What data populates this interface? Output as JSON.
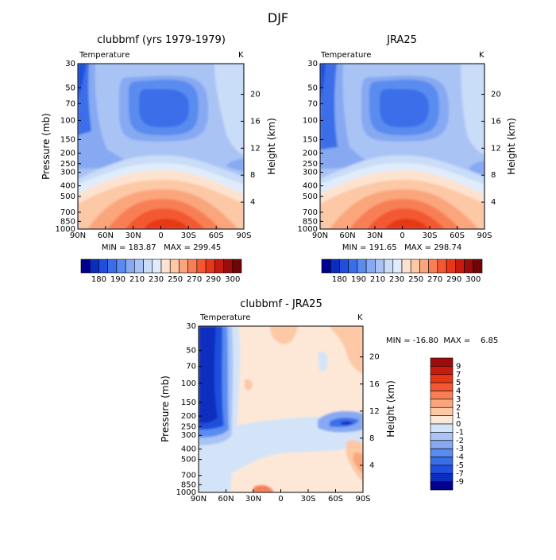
{
  "title": "DJF",
  "panels": [
    {
      "id": "clubbmf",
      "title": "clubbmf (yrs 1979-1979)",
      "left_label": "Temperature",
      "right_label": "K",
      "ylabel": "Pressure (mb)",
      "y2label": "Height (km)",
      "min_max_text": "MIN = 183.87   MAX = 299.45"
    },
    {
      "id": "jra25",
      "title": "JRA25",
      "left_label": "Temperature",
      "right_label": "K",
      "ylabel": "Pressure (mb)",
      "y2label": "Height (km)",
      "min_max_text": "MIN = 191.65   MAX = 298.74"
    },
    {
      "id": "diff",
      "title": "clubbmf - JRA25",
      "left_label": "Temperature",
      "right_label": "K",
      "ylabel": "Pressure (mb)",
      "y2label": "Height (km)",
      "min_max_text": "MIN = -16.80  MAX =    6.85"
    }
  ],
  "pressure_ticks": [
    "30",
    "50",
    "70",
    "100",
    "150",
    "200",
    "250",
    "300",
    "400",
    "500",
    "700",
    "850",
    "1000"
  ],
  "height_ticks": [
    "20",
    "16",
    "12",
    "8",
    "4"
  ],
  "lat_ticks": [
    "90N",
    "60N",
    "30N",
    "0",
    "30S",
    "60S",
    "90S"
  ],
  "colorbar_abs": {
    "colors": [
      "#00008f",
      "#0a2dbf",
      "#1f4fdc",
      "#3a6ee8",
      "#5a8cf0",
      "#86a9f2",
      "#a9c3f5",
      "#c9dcf8",
      "#e0ecfb",
      "#fde3cf",
      "#fcc8a6",
      "#fba57c",
      "#f87f55",
      "#f35832",
      "#e63819",
      "#c81b0f",
      "#9b0c0c",
      "#6e0606"
    ],
    "labels": [
      "180",
      "190",
      "210",
      "230",
      "250",
      "270",
      "290",
      "300"
    ]
  },
  "colorbar_diff": {
    "colors": [
      "#00008f",
      "#0a2dbf",
      "#1f4fdc",
      "#3a6ee8",
      "#5a8cf0",
      "#86a9f2",
      "#a9c3f5",
      "#d4e4f8",
      "#fde8d8",
      "#fcc8a6",
      "#fba57c",
      "#f87f55",
      "#f35832",
      "#e63819",
      "#c81b0f",
      "#9b0c0c"
    ],
    "labels": [
      "9",
      "7",
      "5",
      "4",
      "3",
      "2",
      "1",
      "0",
      "-1",
      "-2",
      "-3",
      "-4",
      "-5",
      "-7",
      "-9"
    ]
  },
  "chart_data": [
    {
      "type": "heatmap",
      "title": "clubbmf (yrs 1979-1979)",
      "variable": "Temperature",
      "units": "K",
      "xlabel": "",
      "ylabel": "Pressure (mb)",
      "y2label": "Height (km)",
      "x": [
        "90N",
        "60N",
        "30N",
        "0",
        "30S",
        "60S",
        "90S"
      ],
      "y": [
        30,
        50,
        70,
        100,
        150,
        200,
        250,
        300,
        400,
        500,
        700,
        850,
        1000
      ],
      "min": 183.87,
      "max": 299.45
    },
    {
      "type": "heatmap",
      "title": "JRA25",
      "variable": "Temperature",
      "units": "K",
      "xlabel": "",
      "ylabel": "Pressure (mb)",
      "y2label": "Height (km)",
      "x": [
        "90N",
        "60N",
        "30N",
        "0",
        "30S",
        "60S",
        "90S"
      ],
      "y": [
        30,
        50,
        70,
        100,
        150,
        200,
        250,
        300,
        400,
        500,
        700,
        850,
        1000
      ],
      "min": 191.65,
      "max": 298.74
    },
    {
      "type": "heatmap",
      "title": "clubbmf - JRA25",
      "variable": "Temperature",
      "units": "K",
      "xlabel": "",
      "ylabel": "Pressure (mb)",
      "y2label": "Height (km)",
      "x": [
        "90N",
        "60N",
        "30N",
        "0",
        "30S",
        "60S",
        "90S"
      ],
      "y": [
        30,
        50,
        70,
        100,
        150,
        200,
        250,
        300,
        400,
        500,
        700,
        850,
        1000
      ],
      "min": -16.8,
      "max": 6.85
    }
  ]
}
